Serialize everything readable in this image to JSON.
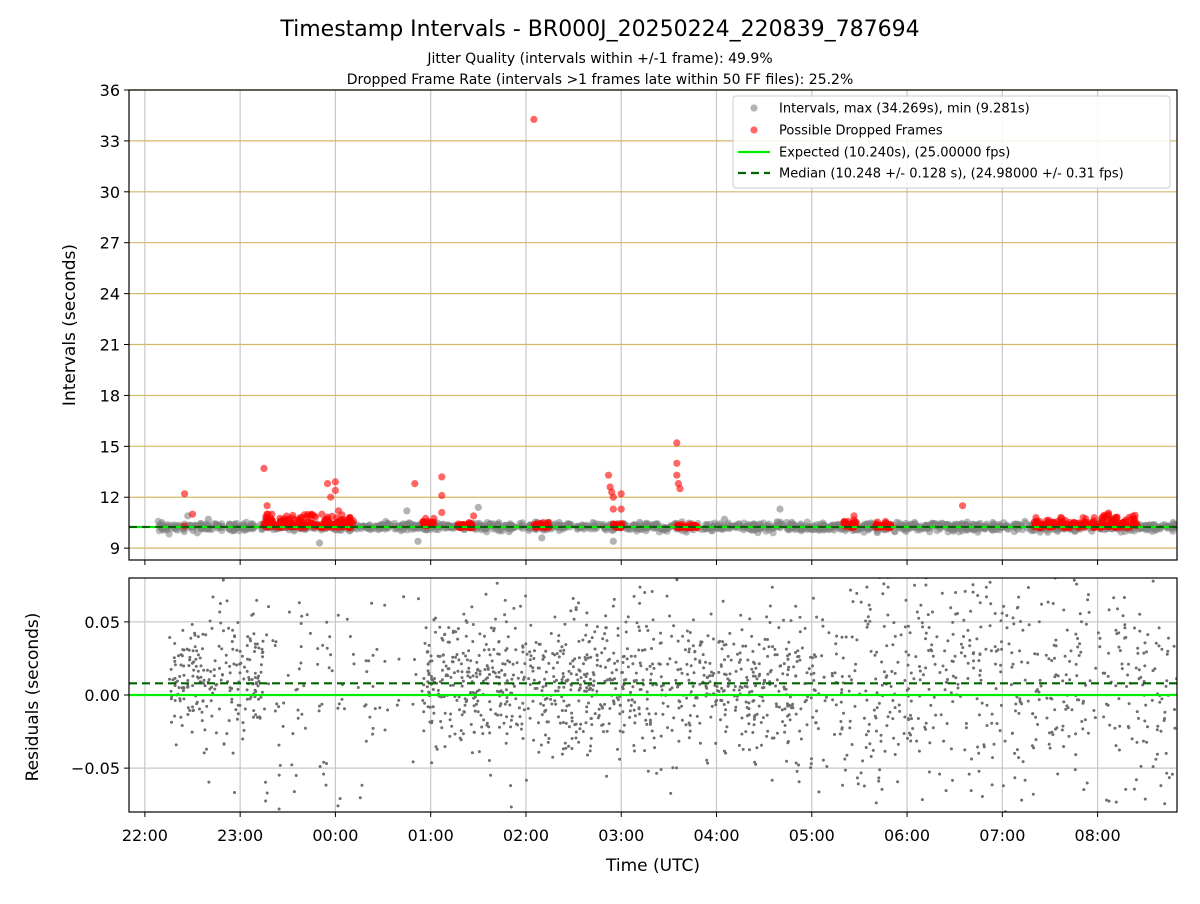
{
  "figure": {
    "title": "Timestamp Intervals - BR000J_20250224_220839_787694",
    "subtitle_line1": "Jitter Quality (intervals within +/-1 frame): 49.9%",
    "subtitle_line2": "Dropped Frame Rate (intervals >1 frames late within 50 FF files): 25.2%"
  },
  "colors": {
    "intervals": "#808080",
    "dropped": "#ff0000",
    "expected": "#00ee00",
    "median": "#006400",
    "hgrid": "#d4b96a",
    "vgrid": "#c8c8c8",
    "residual_points": "#6e6e6e"
  },
  "chart_data": [
    {
      "type": "scatter",
      "panel": "intervals",
      "xlabel": "",
      "ylabel": "Intervals (seconds)",
      "xlim": [
        "21:50",
        "08:50"
      ],
      "ylim": [
        8.3,
        36
      ],
      "yticks": [
        9,
        12,
        15,
        18,
        21,
        24,
        27,
        30,
        33,
        36
      ],
      "ytick_labels": [
        "9",
        "12",
        "15",
        "18",
        "21",
        "24",
        "27",
        "30",
        "33",
        "36"
      ],
      "xticks": [
        "22:00",
        "23:00",
        "00:00",
        "01:00",
        "02:00",
        "03:00",
        "04:00",
        "05:00",
        "06:00",
        "07:00",
        "08:00"
      ],
      "grid": true,
      "legend_position": "top-right",
      "legend": [
        "Intervals, max (34.269s), min (9.281s)",
        "Possible Dropped Frames",
        "Expected (10.240s), (25.00000 fps)",
        "Median (10.248 +/- 0.128 s), (24.98000 +/- 0.31 fps)"
      ],
      "expected_interval": 10.24,
      "median_interval": 10.248,
      "series": [
        {
          "name": "Intervals, max (34.269s), min (9.281s)",
          "description_range": [
            "22:08",
            "08:50"
          ],
          "typical": 10.25,
          "outliers": [
            {
              "t": "22:27",
              "y": 10.9
            },
            {
              "t": "22:33",
              "y": 9.9
            },
            {
              "t": "22:40",
              "y": 10.7
            },
            {
              "t": "23:50",
              "y": 9.3
            },
            {
              "t": "00:45",
              "y": 11.2
            },
            {
              "t": "00:52",
              "y": 9.4
            },
            {
              "t": "01:30",
              "y": 11.4
            },
            {
              "t": "02:10",
              "y": 9.6
            },
            {
              "t": "02:55",
              "y": 9.4
            },
            {
              "t": "04:40",
              "y": 11.3
            },
            {
              "t": "04:05",
              "y": 10.7
            }
          ]
        },
        {
          "name": "Possible Dropped Frames",
          "clusters": [
            {
              "from": "23:15",
              "to": "00:12",
              "ymin": 10.2,
              "ymax": 11.0
            },
            {
              "from": "00:55",
              "to": "01:02",
              "ymin": 10.3,
              "ymax": 10.8
            },
            {
              "from": "01:17",
              "to": "01:27",
              "ymin": 10.2,
              "ymax": 10.5
            },
            {
              "from": "02:05",
              "to": "02:15",
              "ymin": 10.2,
              "ymax": 10.5
            },
            {
              "from": "02:55",
              "to": "03:02",
              "ymin": 10.2,
              "ymax": 10.5
            },
            {
              "from": "03:35",
              "to": "03:48",
              "ymin": 10.2,
              "ymax": 10.4
            },
            {
              "from": "05:20",
              "to": "05:28",
              "ymin": 10.2,
              "ymax": 10.9
            },
            {
              "from": "05:40",
              "to": "05:50",
              "ymin": 10.2,
              "ymax": 10.6
            },
            {
              "from": "07:20",
              "to": "07:53",
              "ymin": 10.2,
              "ymax": 10.8
            },
            {
              "from": "07:55",
              "to": "08:25",
              "ymin": 10.2,
              "ymax": 11.1
            }
          ],
          "points": [
            {
              "t": "22:25",
              "y": 12.2
            },
            {
              "t": "22:25",
              "y": 10.3
            },
            {
              "t": "22:30",
              "y": 11.0
            },
            {
              "t": "23:15",
              "y": 13.7
            },
            {
              "t": "23:17",
              "y": 11.5
            },
            {
              "t": "23:45",
              "y": 11.0
            },
            {
              "t": "23:55",
              "y": 12.8
            },
            {
              "t": "23:57",
              "y": 12.0
            },
            {
              "t": "24:00",
              "y": 12.9
            },
            {
              "t": "24:00",
              "y": 12.4
            },
            {
              "t": "24:02",
              "y": 11.2
            },
            {
              "t": "24:50",
              "y": 12.8
            },
            {
              "t": "25:07",
              "y": 13.2
            },
            {
              "t": "25:07",
              "y": 12.1
            },
            {
              "t": "25:07",
              "y": 11.1
            },
            {
              "t": "25:27",
              "y": 10.9
            },
            {
              "t": "26:05",
              "y": 34.27
            },
            {
              "t": "26:52",
              "y": 13.3
            },
            {
              "t": "26:53",
              "y": 12.6
            },
            {
              "t": "26:54",
              "y": 12.3
            },
            {
              "t": "26:55",
              "y": 12.0
            },
            {
              "t": "26:55",
              "y": 11.3
            },
            {
              "t": "27:00",
              "y": 11.3
            },
            {
              "t": "27:00",
              "y": 12.2
            },
            {
              "t": "27:35",
              "y": 15.2
            },
            {
              "t": "27:35",
              "y": 14.0
            },
            {
              "t": "27:35",
              "y": 13.3
            },
            {
              "t": "27:36",
              "y": 12.8
            },
            {
              "t": "27:37",
              "y": 12.5
            },
            {
              "t": "30:35",
              "y": 11.5
            }
          ]
        },
        {
          "name": "Expected (10.240s), (25.00000 fps)",
          "y": 10.24
        },
        {
          "name": "Median (10.248 +/- 0.128 s), (24.98000 +/- 0.31 fps)",
          "y": 10.248
        }
      ]
    },
    {
      "type": "scatter",
      "panel": "residuals",
      "xlabel": "Time (UTC)",
      "ylabel": "Residuals (seconds)",
      "xlim": [
        "21:50",
        "08:50"
      ],
      "ylim": [
        -0.08,
        0.08
      ],
      "yticks": [
        -0.05,
        0.0,
        0.05
      ],
      "ytick_labels": [
        "−0.05",
        "0.00",
        "0.05"
      ],
      "xticks": [
        "22:00",
        "23:00",
        "00:00",
        "01:00",
        "02:00",
        "03:00",
        "04:00",
        "05:00",
        "06:00",
        "07:00",
        "08:00"
      ],
      "grid": true,
      "expected_residual": 0.0,
      "median_residual": 0.008,
      "series": [
        {
          "name": "",
          "segments": [
            {
              "from": "22:15",
              "to": "23:15",
              "spread": 0.045,
              "count": 230
            },
            {
              "from": "23:15",
              "to": "00:55",
              "spread": 0.085,
              "count": 110
            },
            {
              "from": "00:55",
              "to": "04:50",
              "spread": 0.05,
              "count": 950
            },
            {
              "from": "04:50",
              "to": "08:50",
              "spread": 0.09,
              "count": 650
            }
          ]
        }
      ]
    }
  ]
}
